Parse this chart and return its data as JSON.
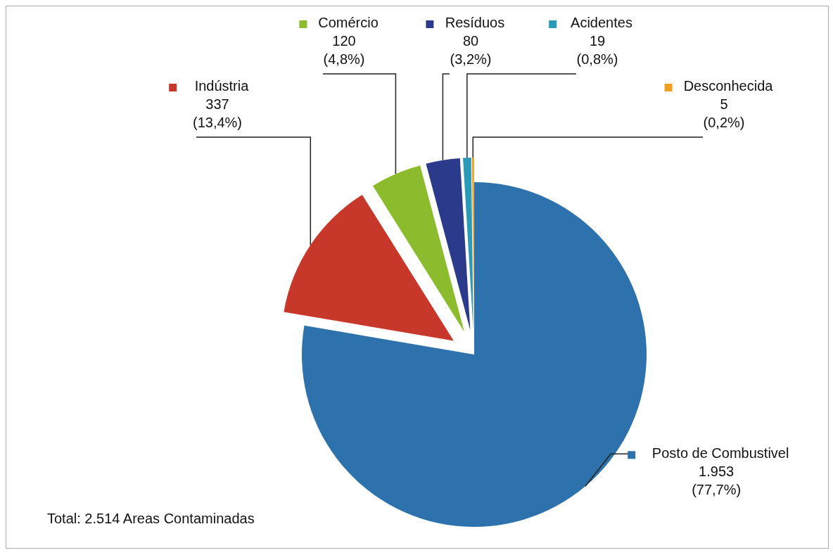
{
  "chart_data": {
    "type": "pie",
    "categories": [
      "Posto de Combustivel",
      "Indústria",
      "Comércio",
      "Resíduos",
      "Acidentes",
      "Desconhecida"
    ],
    "values": [
      1953,
      337,
      120,
      80,
      19,
      5
    ],
    "colors": [
      "#2e72ad",
      "#c8382a",
      "#8cbc2e",
      "#2c3a8c",
      "#2a9ab6",
      "#f0a020"
    ],
    "value_labels": [
      "1.953\n(77,7%)",
      "337\n(13,4%)",
      "120\n(4,8%)",
      "80\n(3,2%)",
      "19\n(0,8%)",
      "5\n(0,2%)"
    ],
    "legend": "top",
    "annotations": [
      "Total: 2.514 Areas Contaminadas"
    ]
  }
}
